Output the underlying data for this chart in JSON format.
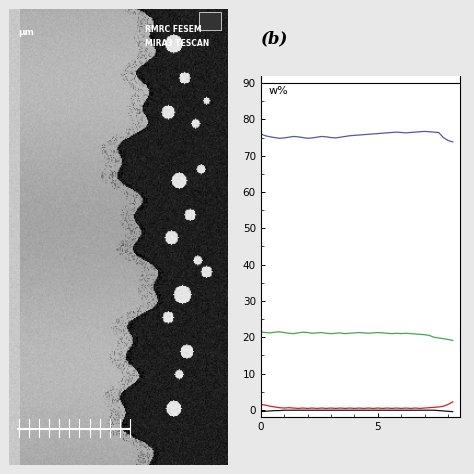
{
  "title_b": "(b)",
  "ylabel": "w%",
  "xlabel_ticks": [
    0,
    5
  ],
  "xlim": [
    0,
    8.5
  ],
  "ylim": [
    -2,
    92
  ],
  "yticks": [
    0,
    10,
    20,
    30,
    40,
    50,
    60,
    70,
    80,
    90
  ],
  "blue_line": {
    "x": [
      0.0,
      0.2,
      0.4,
      0.6,
      0.8,
      1.0,
      1.2,
      1.4,
      1.6,
      1.8,
      2.0,
      2.2,
      2.4,
      2.6,
      2.8,
      3.0,
      3.2,
      3.4,
      3.6,
      3.8,
      4.0,
      4.2,
      4.4,
      4.6,
      4.8,
      5.0,
      5.2,
      5.4,
      5.6,
      5.8,
      6.0,
      6.2,
      6.4,
      6.6,
      6.8,
      7.0,
      7.2,
      7.4,
      7.6,
      7.8,
      8.0,
      8.2
    ],
    "y": [
      76.0,
      75.5,
      75.2,
      75.0,
      74.8,
      74.9,
      75.1,
      75.3,
      75.2,
      75.0,
      74.8,
      74.9,
      75.1,
      75.3,
      75.2,
      75.0,
      74.9,
      75.1,
      75.3,
      75.5,
      75.6,
      75.7,
      75.8,
      75.9,
      76.0,
      76.1,
      76.2,
      76.3,
      76.4,
      76.5,
      76.4,
      76.3,
      76.4,
      76.5,
      76.6,
      76.7,
      76.6,
      76.5,
      76.4,
      75.0,
      74.2,
      73.8
    ],
    "color": "#5555aa"
  },
  "green_line": {
    "x": [
      0.0,
      0.2,
      0.4,
      0.6,
      0.8,
      1.0,
      1.2,
      1.4,
      1.6,
      1.8,
      2.0,
      2.2,
      2.4,
      2.6,
      2.8,
      3.0,
      3.2,
      3.4,
      3.6,
      3.8,
      4.0,
      4.2,
      4.4,
      4.6,
      4.8,
      5.0,
      5.2,
      5.4,
      5.6,
      5.8,
      6.0,
      6.2,
      6.4,
      6.6,
      6.8,
      7.0,
      7.2,
      7.4,
      7.6,
      7.8,
      8.0,
      8.2
    ],
    "y": [
      21.5,
      21.3,
      21.2,
      21.4,
      21.5,
      21.3,
      21.1,
      21.0,
      21.2,
      21.4,
      21.3,
      21.1,
      21.2,
      21.3,
      21.1,
      21.0,
      21.1,
      21.2,
      21.0,
      21.1,
      21.2,
      21.3,
      21.2,
      21.1,
      21.2,
      21.3,
      21.2,
      21.1,
      21.0,
      21.1,
      21.0,
      21.1,
      21.0,
      20.9,
      20.8,
      20.7,
      20.5,
      20.0,
      19.8,
      19.6,
      19.4,
      19.1
    ],
    "color": "#44aa44"
  },
  "red_line": {
    "x": [
      0.0,
      0.2,
      0.4,
      0.6,
      0.8,
      1.0,
      1.2,
      1.4,
      1.6,
      1.8,
      2.0,
      2.2,
      2.4,
      2.6,
      2.8,
      3.0,
      3.2,
      3.4,
      3.6,
      3.8,
      4.0,
      4.2,
      4.4,
      4.6,
      4.8,
      5.0,
      5.2,
      5.4,
      5.6,
      5.8,
      6.0,
      6.2,
      6.4,
      6.6,
      6.8,
      7.0,
      7.2,
      7.4,
      7.6,
      7.8,
      8.0,
      8.2
    ],
    "y": [
      1.5,
      1.3,
      1.0,
      0.8,
      0.6,
      0.5,
      0.6,
      0.5,
      0.4,
      0.5,
      0.4,
      0.5,
      0.4,
      0.5,
      0.4,
      0.5,
      0.4,
      0.5,
      0.4,
      0.5,
      0.4,
      0.5,
      0.4,
      0.5,
      0.4,
      0.5,
      0.4,
      0.5,
      0.4,
      0.5,
      0.4,
      0.5,
      0.4,
      0.5,
      0.4,
      0.5,
      0.6,
      0.7,
      0.8,
      1.0,
      1.5,
      2.2
    ],
    "color": "#cc2222"
  },
  "black_line": {
    "x": [
      0.0,
      0.2,
      0.4,
      0.6,
      0.8,
      1.0,
      1.2,
      1.4,
      1.6,
      1.8,
      2.0,
      2.2,
      2.4,
      2.6,
      2.8,
      3.0,
      3.2,
      3.4,
      3.6,
      3.8,
      4.0,
      4.2,
      4.4,
      4.6,
      4.8,
      5.0,
      5.2,
      5.4,
      5.6,
      5.8,
      6.0,
      6.2,
      6.4,
      6.6,
      6.8,
      7.0,
      7.2,
      7.4,
      7.6,
      7.8,
      8.0,
      8.2
    ],
    "y": [
      -0.5,
      -0.4,
      -0.3,
      -0.2,
      -0.2,
      -0.1,
      -0.1,
      -0.1,
      -0.1,
      -0.1,
      -0.1,
      -0.1,
      -0.1,
      -0.1,
      -0.1,
      -0.1,
      -0.1,
      -0.1,
      -0.1,
      -0.1,
      -0.1,
      -0.1,
      -0.1,
      -0.1,
      -0.1,
      -0.1,
      -0.1,
      -0.1,
      -0.1,
      -0.1,
      -0.1,
      -0.1,
      -0.1,
      -0.1,
      -0.1,
      -0.1,
      -0.1,
      -0.1,
      -0.2,
      -0.3,
      -0.4,
      -0.5
    ],
    "color": "#111111"
  },
  "scalebar_text1": "MIRA3 TESCAN",
  "scalebar_text2": "RMRC FESEM",
  "scalebar_label": "μm",
  "figure_bg": "#e8e8e8",
  "image_bg": "#888888"
}
